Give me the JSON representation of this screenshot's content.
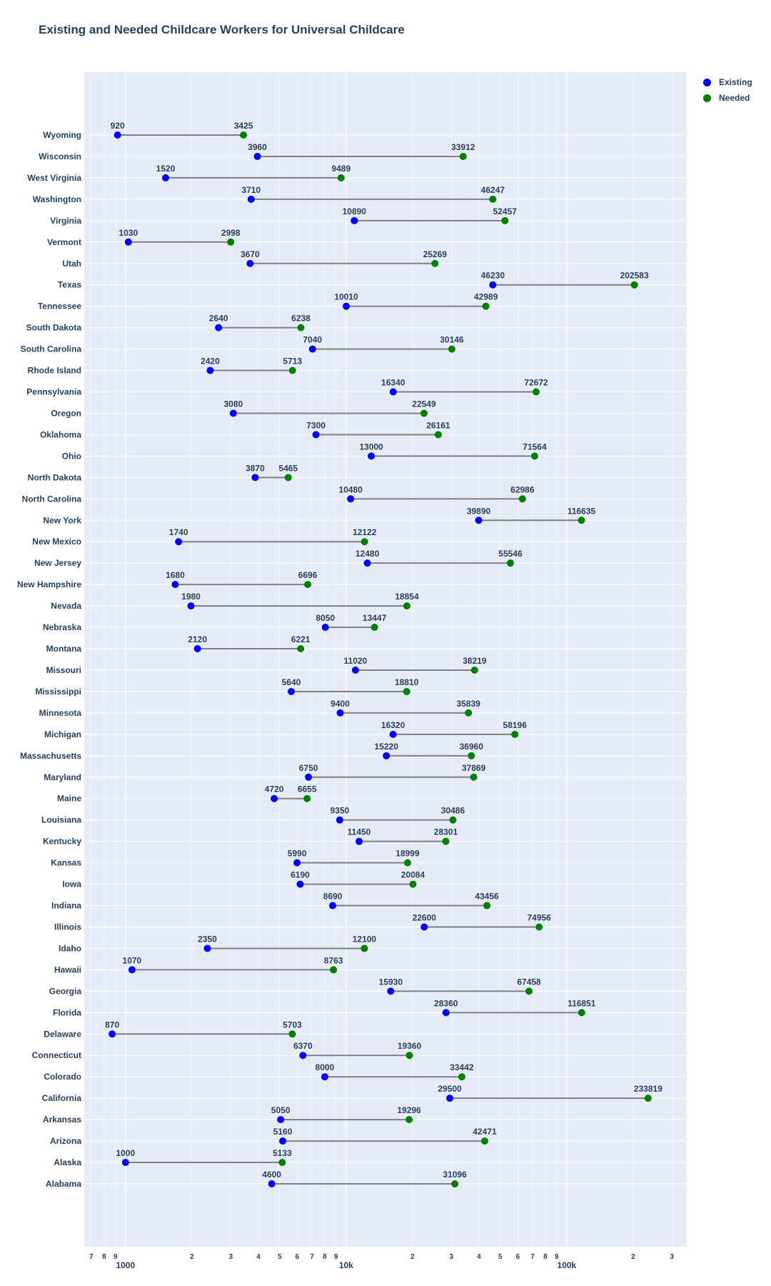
{
  "chart_data": {
    "type": "scatter",
    "title": "Existing and Needed Childcare Workers for Universal Childcare",
    "xscale": "log",
    "xlim": [
      650,
      350000
    ],
    "series": [
      {
        "name": "Existing",
        "color": "#0000ff"
      },
      {
        "name": "Needed",
        "color": "#008000"
      }
    ],
    "line_color": "#808080",
    "plot_background": "#e5ecf6",
    "grid": true,
    "legend_position": "top-right",
    "x_major_ticks": [
      {
        "value": 1000,
        "label": "1000"
      },
      {
        "value": 10000,
        "label": "10k"
      },
      {
        "value": 100000,
        "label": "100k"
      }
    ],
    "x_minor_ticks": [
      {
        "value": 700,
        "label": "7"
      },
      {
        "value": 800,
        "label": "8"
      },
      {
        "value": 900,
        "label": "9"
      },
      {
        "value": 2000,
        "label": "2"
      },
      {
        "value": 3000,
        "label": "3"
      },
      {
        "value": 4000,
        "label": "4"
      },
      {
        "value": 5000,
        "label": "5"
      },
      {
        "value": 6000,
        "label": "6"
      },
      {
        "value": 7000,
        "label": "7"
      },
      {
        "value": 8000,
        "label": "8"
      },
      {
        "value": 9000,
        "label": "9"
      },
      {
        "value": 20000,
        "label": "2"
      },
      {
        "value": 30000,
        "label": "3"
      },
      {
        "value": 40000,
        "label": "4"
      },
      {
        "value": 50000,
        "label": "5"
      },
      {
        "value": 60000,
        "label": "6"
      },
      {
        "value": 70000,
        "label": "7"
      },
      {
        "value": 80000,
        "label": "8"
      },
      {
        "value": 90000,
        "label": "9"
      },
      {
        "value": 200000,
        "label": "2"
      },
      {
        "value": 300000,
        "label": "3"
      }
    ],
    "states": [
      {
        "state": "Wyoming",
        "existing": 920,
        "needed": 3425
      },
      {
        "state": "Wisconsin",
        "existing": 3960,
        "needed": 33912
      },
      {
        "state": "West Virginia",
        "existing": 1520,
        "needed": 9489
      },
      {
        "state": "Washington",
        "existing": 3710,
        "needed": 46247
      },
      {
        "state": "Virginia",
        "existing": 10890,
        "needed": 52457
      },
      {
        "state": "Vermont",
        "existing": 1030,
        "needed": 2998
      },
      {
        "state": "Utah",
        "existing": 3670,
        "needed": 25269
      },
      {
        "state": "Texas",
        "existing": 46230,
        "needed": 202583
      },
      {
        "state": "Tennessee",
        "existing": 10010,
        "needed": 42989
      },
      {
        "state": "South Dakota",
        "existing": 2640,
        "needed": 6238
      },
      {
        "state": "South Carolina",
        "existing": 7040,
        "needed": 30146
      },
      {
        "state": "Rhode Island",
        "existing": 2420,
        "needed": 5713
      },
      {
        "state": "Pennsylvania",
        "existing": 16340,
        "needed": 72672
      },
      {
        "state": "Oregon",
        "existing": 3080,
        "needed": 22549
      },
      {
        "state": "Oklahoma",
        "existing": 7300,
        "needed": 26161
      },
      {
        "state": "Ohio",
        "existing": 13000,
        "needed": 71564
      },
      {
        "state": "North Dakota",
        "existing": 3870,
        "needed": 5465
      },
      {
        "state": "North Carolina",
        "existing": 10480,
        "needed": 62986
      },
      {
        "state": "New York",
        "existing": 39890,
        "needed": 116635
      },
      {
        "state": "New Mexico",
        "existing": 1740,
        "needed": 12122
      },
      {
        "state": "New Jersey",
        "existing": 12480,
        "needed": 55546
      },
      {
        "state": "New Hampshire",
        "existing": 1680,
        "needed": 6696
      },
      {
        "state": "Nevada",
        "existing": 1980,
        "needed": 18854
      },
      {
        "state": "Nebraska",
        "existing": 8050,
        "needed": 13447
      },
      {
        "state": "Montana",
        "existing": 2120,
        "needed": 6221
      },
      {
        "state": "Missouri",
        "existing": 11020,
        "needed": 38219
      },
      {
        "state": "Mississippi",
        "existing": 5640,
        "needed": 18810
      },
      {
        "state": "Minnesota",
        "existing": 9400,
        "needed": 35839
      },
      {
        "state": "Michigan",
        "existing": 16320,
        "needed": 58196
      },
      {
        "state": "Massachusetts",
        "existing": 15220,
        "needed": 36960
      },
      {
        "state": "Maryland",
        "existing": 6750,
        "needed": 37869
      },
      {
        "state": "Maine",
        "existing": 4720,
        "needed": 6655
      },
      {
        "state": "Louisiana",
        "existing": 9350,
        "needed": 30486
      },
      {
        "state": "Kentucky",
        "existing": 11450,
        "needed": 28301
      },
      {
        "state": "Kansas",
        "existing": 5990,
        "needed": 18999
      },
      {
        "state": "Iowa",
        "existing": 6190,
        "needed": 20084
      },
      {
        "state": "Indiana",
        "existing": 8690,
        "needed": 43456
      },
      {
        "state": "Illinois",
        "existing": 22600,
        "needed": 74956
      },
      {
        "state": "Idaho",
        "existing": 2350,
        "needed": 12100
      },
      {
        "state": "Hawaii",
        "existing": 1070,
        "needed": 8763
      },
      {
        "state": "Georgia",
        "existing": 15930,
        "needed": 67458
      },
      {
        "state": "Florida",
        "existing": 28360,
        "needed": 116851
      },
      {
        "state": "Delaware",
        "existing": 870,
        "needed": 5703
      },
      {
        "state": "Connecticut",
        "existing": 6370,
        "needed": 19360
      },
      {
        "state": "Colorado",
        "existing": 8000,
        "needed": 33442
      },
      {
        "state": "California",
        "existing": 29500,
        "needed": 233819
      },
      {
        "state": "Arkansas",
        "existing": 5050,
        "needed": 19296
      },
      {
        "state": "Arizona",
        "existing": 5160,
        "needed": 42471
      },
      {
        "state": "Alaska",
        "existing": 1000,
        "needed": 5133
      },
      {
        "state": "Alabama",
        "existing": 4600,
        "needed": 31096
      }
    ]
  }
}
